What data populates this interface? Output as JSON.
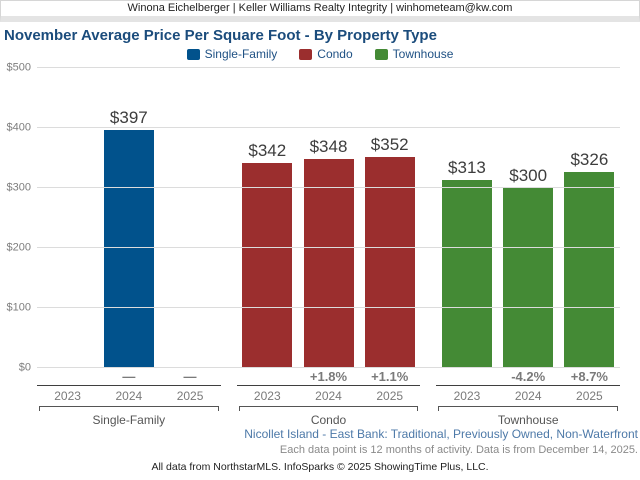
{
  "header": {
    "text": "Winona Eichelberger | Keller Williams Realty Integrity | winhometeam@kw.com"
  },
  "title": "November Average Price Per Square Foot - By Property Type",
  "legend": [
    {
      "label": "Single-Family",
      "color": "#01528c"
    },
    {
      "label": "Condo",
      "color": "#9b2e2e"
    },
    {
      "label": "Townhouse",
      "color": "#448a35"
    }
  ],
  "chart_data": {
    "type": "bar",
    "title": "November Average Price Per Square Foot - By Property Type",
    "xlabel": "",
    "ylabel": "",
    "ylim": [
      0,
      500
    ],
    "ytick_step": 100,
    "ytick_labels": [
      "$0",
      "$100",
      "$200",
      "$300",
      "$400",
      "$500"
    ],
    "grid": true,
    "legend_position": "top",
    "categories": [
      "2023",
      "2024",
      "2025"
    ],
    "groups": [
      {
        "name": "Single-Family",
        "color": "#01528c",
        "values": [
          null,
          397,
          null
        ],
        "value_labels": [
          "",
          "$397",
          ""
        ],
        "changes": [
          "",
          "—",
          "—"
        ]
      },
      {
        "name": "Condo",
        "color": "#9b2e2e",
        "values": [
          342,
          348,
          352
        ],
        "value_labels": [
          "$342",
          "$348",
          "$352"
        ],
        "changes": [
          "",
          "+1.8%",
          "+1.1%"
        ]
      },
      {
        "name": "Townhouse",
        "color": "#448a35",
        "values": [
          313,
          300,
          326
        ],
        "value_labels": [
          "$313",
          "$300",
          "$326"
        ],
        "changes": [
          "",
          "-4.2%",
          "+8.7%"
        ]
      }
    ]
  },
  "footer": {
    "segment": "Nicollet Island - East Bank: Traditional, Previously Owned, Non-Waterfront",
    "data_note": "Each data point is 12 months of activity. Data is from December 14, 2025.",
    "attribution": "All data from NorthstarMLS. InfoSparks © 2025 ShowingTime Plus, LLC."
  },
  "colors": {
    "title": "#1b4c7c",
    "gridline": "#dcdcdc",
    "axis_label": "#7d7d7d",
    "value_label": "#3d3d3d",
    "change_label": "#7a7a7a",
    "divider": "#3f3f3f",
    "footer_segment": "#4d79a8"
  }
}
